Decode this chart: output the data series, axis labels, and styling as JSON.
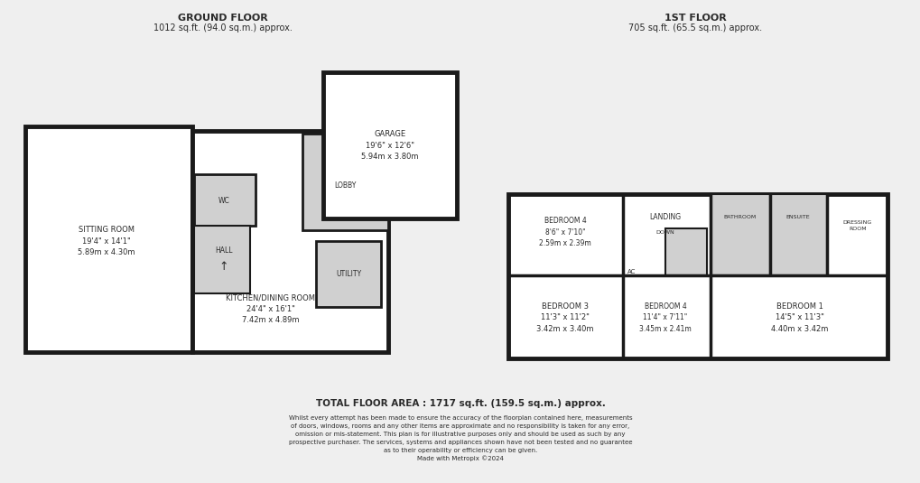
{
  "bg_color": "#efefef",
  "wall_color": "#1a1a1a",
  "wall_lw": 3.5,
  "room_fill": "#ffffff",
  "shaded_fill": "#d0d0d0",
  "ground_floor_title": "GROUND FLOOR",
  "ground_floor_subtitle": "1012 sq.ft. (94.0 sq.m.) approx.",
  "first_floor_title": "1ST FLOOR",
  "first_floor_subtitle": "705 sq.ft. (65.5 sq.m.) approx.",
  "total_area": "TOTAL FLOOR AREA : 1717 sq.ft. (159.5 sq.m.) approx.",
  "disclaimer_line1": "Whilst every attempt has been made to ensure the accuracy of the floorplan contained here, measurements",
  "disclaimer_line2": "of doors, windows, rooms and any other items are approximate and no responsibility is taken for any error,",
  "disclaimer_line3": "omission or mis-statement. This plan is for illustrative purposes only and should be used as such by any",
  "disclaimer_line4": "prospective purchaser. The services, systems and appliances shown have not been tested and no guarantee",
  "disclaimer_line5": "as to their operability or efficiency can be given.",
  "disclaimer_line6": "Made with Metropix ©2024",
  "text_color": "#2a2a2a",
  "heading_fontsize": 7.5,
  "label_fontsize": 6.0,
  "small_fontsize": 5.0
}
